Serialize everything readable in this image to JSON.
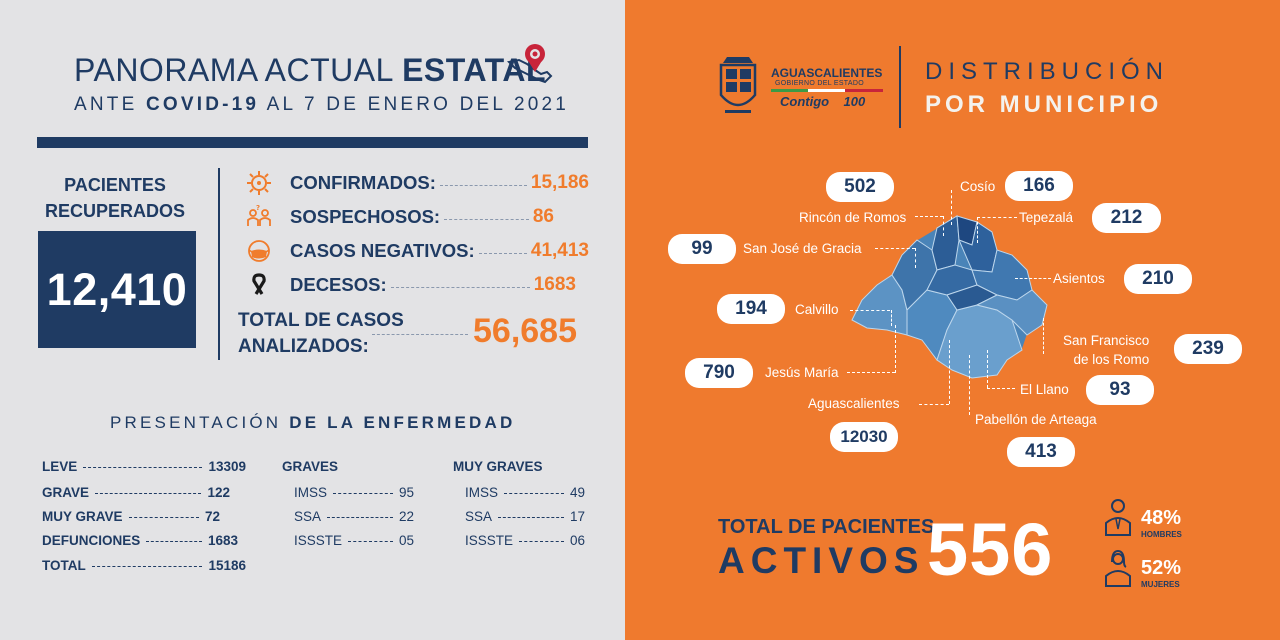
{
  "header": {
    "title_light": "PANORAMA ACTUAL",
    "title_bold": "ESTATAL",
    "sub_pre": "ANTE",
    "sub_bold": "COVID-19",
    "sub_post": "AL 7 DE ENERO DEL 2021"
  },
  "recovered": {
    "label": "PACIENTES RECUPERADOS",
    "value": "12,410"
  },
  "stats": [
    {
      "label": "CONFIRMADOS:",
      "value": "15,186",
      "icon": "virus-icon"
    },
    {
      "label": "SOSPECHOSOS:",
      "value": "86",
      "icon": "suspect-person-icon"
    },
    {
      "label": "CASOS NEGATIVOS:",
      "value": "41,413",
      "icon": "face-mask-icon"
    },
    {
      "label": "DECESOS:",
      "value": "1683",
      "icon": "mourning-ribbon-icon"
    }
  ],
  "total": {
    "label_line1": "TOTAL DE CASOS",
    "label_line2": "ANALIZADOS:",
    "value": "56,685"
  },
  "presentation": {
    "title_light": "PRESENTACIÓN",
    "title_bold": "DE LA ENFERMEDAD",
    "summary": [
      {
        "label": "LEVE",
        "value": "13309"
      },
      {
        "label": "GRAVE",
        "value": "122"
      },
      {
        "label": "MUY GRAVE",
        "value": "72"
      },
      {
        "label": "DEFUNCIONES",
        "value": "1683"
      },
      {
        "label": "TOTAL",
        "value": "15186"
      }
    ],
    "graves": {
      "title": "GRAVES",
      "rows": [
        {
          "label": "IMSS",
          "value": "95"
        },
        {
          "label": "SSA",
          "value": "22"
        },
        {
          "label": "ISSSTE",
          "value": "05"
        }
      ]
    },
    "muy_graves": {
      "title": "MUY GRAVES",
      "rows": [
        {
          "label": "IMSS",
          "value": "49"
        },
        {
          "label": "SSA",
          "value": "17"
        },
        {
          "label": "ISSSTE",
          "value": "06"
        }
      ]
    }
  },
  "logo": {
    "title": "AGUASCALIENTES",
    "subtitle": "GOBIERNO DEL ESTADO",
    "slogan": "Contigo",
    "slogan_num": "100"
  },
  "distribution": {
    "line1": "DISTRIBUCIÓN",
    "line2": "POR MUNICIPIO"
  },
  "municipalities": [
    {
      "name": "Rincón de Romos",
      "value": "502"
    },
    {
      "name": "Cosío",
      "value": "166"
    },
    {
      "name": "Tepezalá",
      "value": "212"
    },
    {
      "name": "San José de Gracia",
      "value": "99"
    },
    {
      "name": "Asientos",
      "value": "210"
    },
    {
      "name": "Calvillo",
      "value": "194"
    },
    {
      "name": "San Francisco",
      "name2": "de los Romo",
      "value": "239"
    },
    {
      "name": "Jesús María",
      "value": "790"
    },
    {
      "name": "El Llano",
      "value": "93"
    },
    {
      "name": "Aguascalientes",
      "value": "12030"
    },
    {
      "name": "Pabellón de Arteaga",
      "value": "413"
    }
  ],
  "active": {
    "label_line1": "TOTAL DE PACIENTES",
    "label_line2": "ACTIVOS",
    "value": "556",
    "men_pct": "48%",
    "men_label": "HOMBRES",
    "women_pct": "52%",
    "women_label": "MUJERES"
  },
  "colors": {
    "navy": "#1f3b63",
    "orange": "#ef7a2e",
    "panel_gray": "#e3e3e5"
  }
}
